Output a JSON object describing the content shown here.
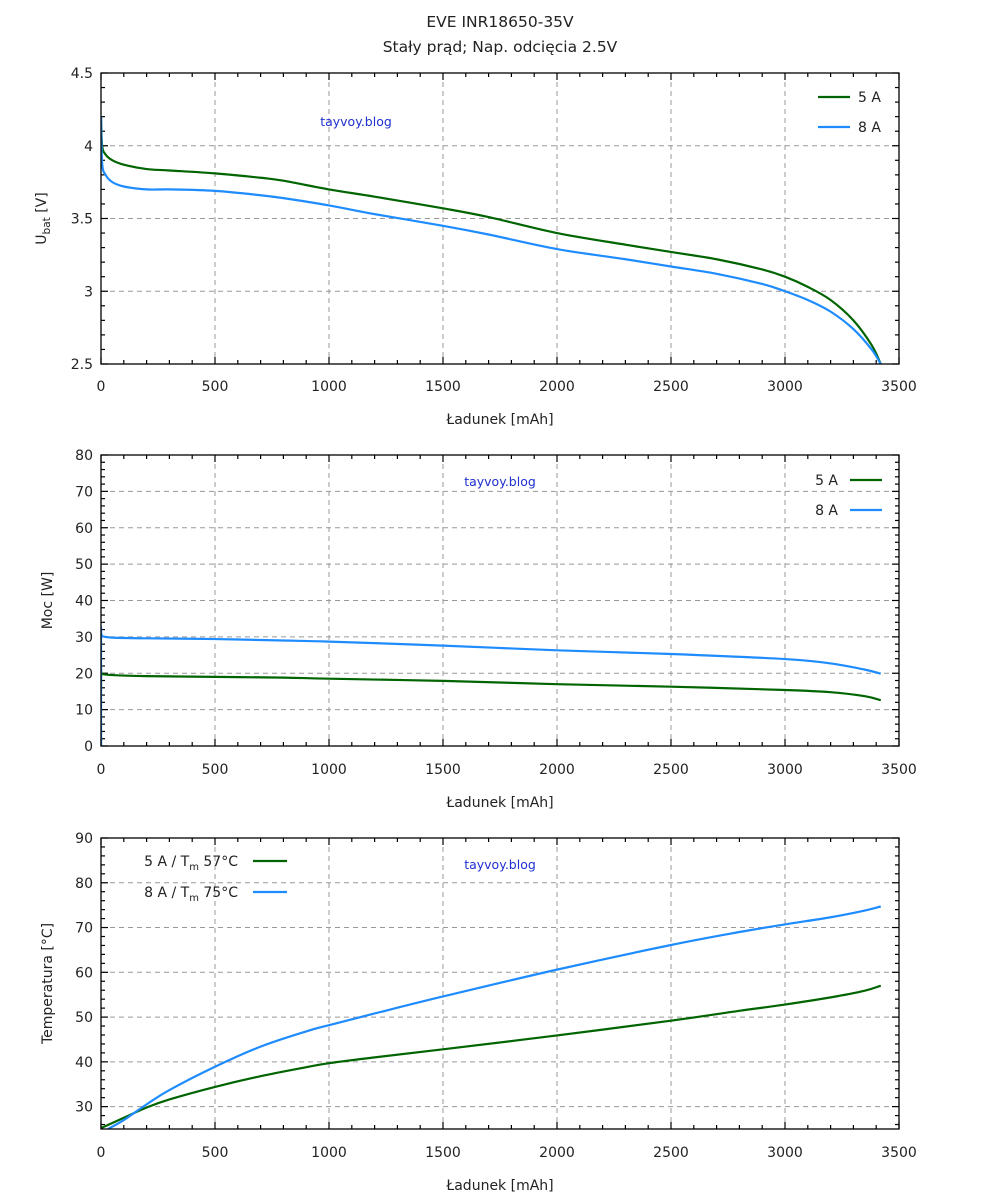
{
  "title": "EVE INR18650-35V",
  "subtitle": "Stały prąd; Nap. odcięcia 2.5V",
  "watermark": "tayvoy.blog",
  "colors": {
    "5A": "#006400",
    "8A": "#1e8cff"
  },
  "chart_data": [
    {
      "type": "line",
      "id": "voltage",
      "title": "EVE INR18650-35V — Stały prąd; Nap. odcięcia 2.5V",
      "xlabel": "Ładunek [mAh]",
      "ylabel": "U_bat [V]",
      "ylabel_main": "U",
      "ylabel_sub": "bat",
      "ylabel_tail": " [V]",
      "xlim": [
        0,
        3500
      ],
      "ylim": [
        2.5,
        4.5
      ],
      "xticks": [
        0,
        500,
        1000,
        1500,
        2000,
        2500,
        3000,
        3500
      ],
      "yticks": [
        2.5,
        3,
        3.5,
        4,
        4.5
      ],
      "ytick_labels": [
        "2.5",
        "3",
        "3.5",
        "4",
        "4.5"
      ],
      "grid": true,
      "legend_position": "top-right",
      "legend_style": "line-then-label",
      "series": [
        {
          "name": "5 A",
          "color": "#006400",
          "x": [
            0,
            5,
            20,
            50,
            100,
            200,
            300,
            500,
            700,
            800,
            1000,
            1200,
            1500,
            1700,
            2000,
            2300,
            2500,
            2700,
            2900,
            3000,
            3100,
            3200,
            3300,
            3380,
            3420
          ],
          "y": [
            4.2,
            4.0,
            3.94,
            3.9,
            3.87,
            3.84,
            3.83,
            3.81,
            3.78,
            3.76,
            3.7,
            3.65,
            3.57,
            3.51,
            3.4,
            3.32,
            3.27,
            3.22,
            3.15,
            3.1,
            3.03,
            2.94,
            2.8,
            2.63,
            2.5
          ]
        },
        {
          "name": "8 A",
          "color": "#1e8cff",
          "x": [
            0,
            5,
            20,
            50,
            100,
            200,
            300,
            500,
            700,
            800,
            1000,
            1200,
            1500,
            1700,
            2000,
            2300,
            2500,
            2700,
            2900,
            3000,
            3100,
            3200,
            3300,
            3380,
            3420
          ],
          "y": [
            4.2,
            3.88,
            3.8,
            3.75,
            3.72,
            3.7,
            3.7,
            3.69,
            3.66,
            3.64,
            3.59,
            3.53,
            3.45,
            3.39,
            3.29,
            3.22,
            3.17,
            3.12,
            3.05,
            3.0,
            2.94,
            2.86,
            2.74,
            2.6,
            2.5
          ]
        }
      ]
    },
    {
      "type": "line",
      "id": "power",
      "xlabel": "Ładunek [mAh]",
      "ylabel": "Moc [W]",
      "xlim": [
        0,
        3500
      ],
      "ylim": [
        0,
        80
      ],
      "xticks": [
        0,
        500,
        1000,
        1500,
        2000,
        2500,
        3000,
        3500
      ],
      "yticks": [
        0,
        10,
        20,
        30,
        40,
        50,
        60,
        70,
        80
      ],
      "ytick_labels": [
        "0",
        "10",
        "20",
        "30",
        "40",
        "50",
        "60",
        "70",
        "80"
      ],
      "grid": true,
      "legend_position": "top-right",
      "legend_style": "label-then-line",
      "series": [
        {
          "name": "5 A",
          "color": "#006400",
          "x": [
            0,
            0.1,
            5,
            50,
            200,
            500,
            800,
            1000,
            1500,
            2000,
            2500,
            3000,
            3200,
            3350,
            3420
          ],
          "y": [
            0,
            20.0,
            19.8,
            19.5,
            19.2,
            19.0,
            18.8,
            18.5,
            17.9,
            17.0,
            16.3,
            15.4,
            14.8,
            13.7,
            12.6
          ]
        },
        {
          "name": "8 A",
          "color": "#1e8cff",
          "x": [
            0,
            0.1,
            5,
            50,
            200,
            500,
            800,
            1000,
            1500,
            2000,
            2500,
            3000,
            3200,
            3350,
            3420
          ],
          "y": [
            0,
            30.5,
            30.2,
            29.8,
            29.6,
            29.4,
            29.0,
            28.7,
            27.6,
            26.3,
            25.3,
            23.9,
            22.7,
            21.0,
            19.9
          ]
        }
      ]
    },
    {
      "type": "line",
      "id": "temperature",
      "xlabel": "Ładunek [mAh]",
      "ylabel": "Temperatura [°C]",
      "xlim": [
        0,
        3500
      ],
      "ylim": [
        25,
        90
      ],
      "xticks": [
        0,
        500,
        1000,
        1500,
        2000,
        2500,
        3000,
        3500
      ],
      "yticks": [
        30,
        40,
        50,
        60,
        70,
        80,
        90
      ],
      "ytick_labels": [
        "30",
        "40",
        "50",
        "60",
        "70",
        "80",
        "90"
      ],
      "grid": true,
      "legend_position": "top-left",
      "legend_style": "label-then-line",
      "series": [
        {
          "name": "5 A  / T_m 57°C",
          "label_main": "5 A  / T",
          "label_sub": "m",
          "label_tail": " 57°C",
          "color": "#006400",
          "x": [
            0,
            100,
            200,
            300,
            500,
            700,
            900,
            1000,
            1200,
            1500,
            2000,
            2500,
            2800,
            3000,
            3200,
            3350,
            3420
          ],
          "y": [
            25.2,
            27.5,
            29.8,
            31.6,
            34.4,
            36.8,
            38.8,
            39.7,
            41.0,
            42.8,
            45.9,
            49.2,
            51.4,
            52.8,
            54.4,
            55.9,
            57.0
          ]
        },
        {
          "name": "8 A  / T_m 75°C",
          "label_main": "8 A  / T",
          "label_sub": "m",
          "label_tail": " 75°C",
          "color": "#1e8cff",
          "x": [
            30,
            100,
            200,
            300,
            500,
            700,
            900,
            1000,
            1200,
            1500,
            2000,
            2500,
            2800,
            3000,
            3200,
            3350,
            3420
          ],
          "y": [
            25.0,
            27.0,
            30.5,
            33.7,
            38.9,
            43.4,
            46.8,
            48.2,
            50.8,
            54.6,
            60.6,
            66.1,
            69.0,
            70.7,
            72.3,
            73.8,
            74.7
          ]
        }
      ]
    }
  ]
}
